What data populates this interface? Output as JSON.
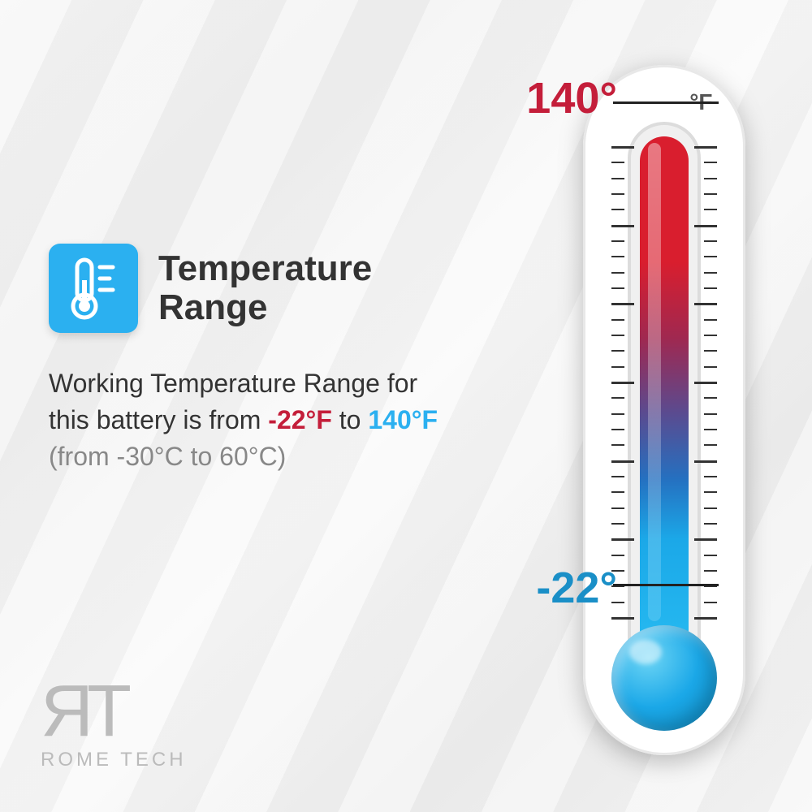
{
  "title": "Temperature\nRange",
  "description": {
    "prefix": "Working Temperature Range for this battery is from ",
    "cold_temp": "-22°F",
    "mid": " to ",
    "hot_temp": "140°F",
    "celsius": "(from -30°C to 60°C)"
  },
  "thermometer": {
    "unit": "°F",
    "high_label": "140°",
    "low_label": "-22°",
    "high_color": "#c41e3a",
    "low_color": "#1a8fc7",
    "gradient_colors": [
      "#d91e2e",
      "#a02850",
      "#5a4b90",
      "#2570c0",
      "#1ba8e8",
      "#25b8f0"
    ],
    "bulb_color": "#1ba8e8",
    "body_color": "#ffffff",
    "tick_count": 30,
    "major_every": 5
  },
  "icon": {
    "bg_color": "#2bb0f0",
    "fg_color": "#ffffff"
  },
  "logo": {
    "mark": "ЯT",
    "text": "ROME TECH"
  },
  "colors": {
    "text_primary": "#333333",
    "text_secondary": "#888888",
    "background": "#f5f5f5"
  }
}
